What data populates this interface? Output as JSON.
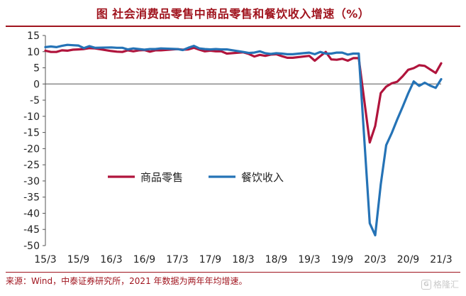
{
  "title": "图  社会消费品零售中商品零售和餐饮收入增速（%）",
  "source": "来源：Wind，中泰证券研究所，2021 年数据为两年年均增速。",
  "watermark": "格隆汇",
  "colors": {
    "accent": "#a0141e",
    "goods": "#b0143c",
    "catering": "#2573b6"
  },
  "chart_data": {
    "type": "line",
    "xlabel": "",
    "ylabel": "",
    "ylim": [
      -50,
      15
    ],
    "yticks": [
      15,
      10,
      5,
      0,
      -5,
      -10,
      -15,
      -20,
      -25,
      -30,
      -35,
      -40,
      -45,
      -50
    ],
    "xticks": [
      "15/3",
      "15/9",
      "16/3",
      "16/9",
      "17/3",
      "17/9",
      "18/3",
      "18/9",
      "19/3",
      "19/9",
      "20/3",
      "20/9",
      "21/3"
    ],
    "grid": false,
    "legend": "middle-left",
    "series": [
      {
        "name": "商品零售",
        "color": "#b0143c",
        "points": [
          [
            "15/03",
            10.3
          ],
          [
            "15/04",
            9.9
          ],
          [
            "15/05",
            9.9
          ],
          [
            "15/06",
            10.4
          ],
          [
            "15/07",
            10.3
          ],
          [
            "15/08",
            10.6
          ],
          [
            "15/09",
            10.7
          ],
          [
            "15/10",
            10.8
          ],
          [
            "15/11",
            11.1
          ],
          [
            "15/12",
            11.0
          ],
          [
            "16/03",
            10.2
          ],
          [
            "16/04",
            10.0
          ],
          [
            "16/05",
            9.9
          ],
          [
            "16/06",
            10.4
          ],
          [
            "16/07",
            10.1
          ],
          [
            "16/08",
            10.4
          ],
          [
            "16/09",
            10.5
          ],
          [
            "16/10",
            10.0
          ],
          [
            "16/11",
            10.4
          ],
          [
            "16/12",
            10.4
          ],
          [
            "17/03",
            10.8
          ],
          [
            "17/04",
            10.6
          ],
          [
            "17/05",
            10.7
          ],
          [
            "17/06",
            11.2
          ],
          [
            "17/07",
            10.6
          ],
          [
            "17/08",
            10.1
          ],
          [
            "17/09",
            10.3
          ],
          [
            "17/10",
            10.1
          ],
          [
            "17/11",
            10.1
          ],
          [
            "17/12",
            9.4
          ],
          [
            "18/03",
            9.8
          ],
          [
            "18/04",
            9.3
          ],
          [
            "18/05",
            8.5
          ],
          [
            "18/06",
            9.0
          ],
          [
            "18/07",
            8.7
          ],
          [
            "18/08",
            9.1
          ],
          [
            "18/09",
            9.2
          ],
          [
            "18/10",
            8.6
          ],
          [
            "18/11",
            8.1
          ],
          [
            "18/12",
            8.1
          ],
          [
            "19/03",
            8.7
          ],
          [
            "19/04",
            7.2
          ],
          [
            "19/05",
            8.6
          ],
          [
            "19/06",
            9.9
          ],
          [
            "19/07",
            7.6
          ],
          [
            "19/08",
            7.5
          ],
          [
            "19/09",
            7.8
          ],
          [
            "19/10",
            7.2
          ],
          [
            "19/11",
            8.0
          ],
          [
            "19/12",
            8.0
          ],
          [
            "20/02",
            -18.1
          ],
          [
            "20/03",
            -13.0
          ],
          [
            "20/04",
            -2.8
          ],
          [
            "20/05",
            -0.8
          ],
          [
            "20/06",
            0.2
          ],
          [
            "20/07",
            0.7
          ],
          [
            "20/08",
            2.4
          ],
          [
            "20/09",
            4.4
          ],
          [
            "20/10",
            4.9
          ],
          [
            "20/11",
            5.8
          ],
          [
            "20/12",
            5.6
          ],
          [
            "21/01",
            4.5
          ],
          [
            "21/02",
            3.4
          ],
          [
            "21/03",
            6.4
          ]
        ]
      },
      {
        "name": "餐饮收入",
        "color": "#2573b6",
        "points": [
          [
            "15/03",
            11.4
          ],
          [
            "15/04",
            11.6
          ],
          [
            "15/05",
            11.4
          ],
          [
            "15/06",
            11.8
          ],
          [
            "15/07",
            12.1
          ],
          [
            "15/08",
            12.0
          ],
          [
            "15/09",
            11.9
          ],
          [
            "15/10",
            11.1
          ],
          [
            "15/11",
            11.7
          ],
          [
            "15/12",
            11.2
          ],
          [
            "16/03",
            11.3
          ],
          [
            "16/04",
            11.2
          ],
          [
            "16/05",
            11.2
          ],
          [
            "16/06",
            10.7
          ],
          [
            "16/07",
            11.0
          ],
          [
            "16/08",
            10.8
          ],
          [
            "16/09",
            10.6
          ],
          [
            "16/10",
            10.8
          ],
          [
            "16/11",
            10.8
          ],
          [
            "16/12",
            11.0
          ],
          [
            "17/03",
            10.8
          ],
          [
            "17/04",
            10.5
          ],
          [
            "17/05",
            11.2
          ],
          [
            "17/06",
            11.8
          ],
          [
            "17/07",
            11.0
          ],
          [
            "17/08",
            10.8
          ],
          [
            "17/09",
            10.7
          ],
          [
            "17/10",
            10.8
          ],
          [
            "17/11",
            10.7
          ],
          [
            "17/12",
            10.7
          ],
          [
            "18/03",
            9.9
          ],
          [
            "18/04",
            9.6
          ],
          [
            "18/05",
            9.7
          ],
          [
            "18/06",
            10.1
          ],
          [
            "18/07",
            9.5
          ],
          [
            "18/08",
            9.3
          ],
          [
            "18/09",
            9.5
          ],
          [
            "18/10",
            9.4
          ],
          [
            "18/11",
            9.2
          ],
          [
            "18/12",
            9.2
          ],
          [
            "19/03",
            9.7
          ],
          [
            "19/04",
            9.2
          ],
          [
            "19/05",
            9.9
          ],
          [
            "19/06",
            9.4
          ],
          [
            "19/07",
            9.4
          ],
          [
            "19/08",
            9.7
          ],
          [
            "19/09",
            9.7
          ],
          [
            "19/10",
            9.1
          ],
          [
            "19/11",
            9.4
          ],
          [
            "19/12",
            9.4
          ],
          [
            "20/02",
            -43.1
          ],
          [
            "20/03",
            -46.8
          ],
          [
            "20/04",
            -31.1
          ],
          [
            "20/05",
            -18.9
          ],
          [
            "20/06",
            -15.2
          ],
          [
            "20/07",
            -11.0
          ],
          [
            "20/08",
            -7.0
          ],
          [
            "20/09",
            -2.9
          ],
          [
            "20/10",
            0.8
          ],
          [
            "20/11",
            -0.6
          ],
          [
            "20/12",
            0.4
          ],
          [
            "21/01",
            -0.5
          ],
          [
            "21/02",
            -1.2
          ],
          [
            "21/03",
            1.5
          ]
        ]
      }
    ]
  }
}
